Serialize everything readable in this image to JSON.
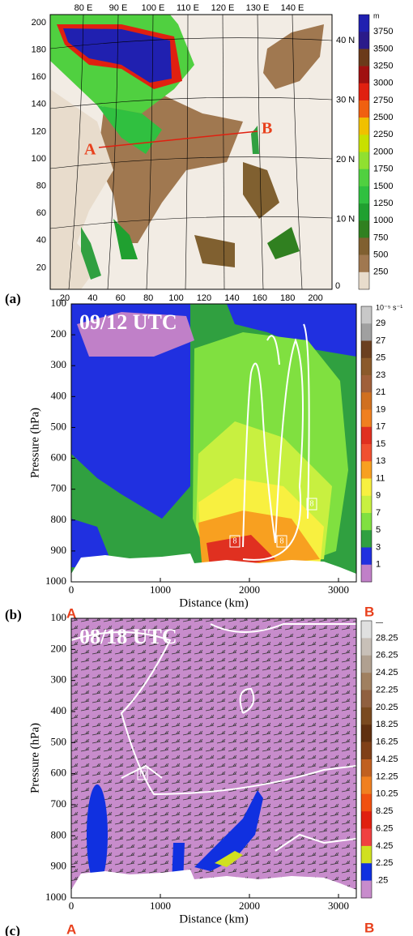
{
  "panel_a": {
    "label": "(a)",
    "top_labels": [
      "80 E",
      "90 E",
      "100 E",
      "110 E",
      "120 E",
      "130 E",
      "140 E"
    ],
    "right_labels": [
      "40 N",
      "30 N",
      "20 N",
      "10 N"
    ],
    "left_ticks": [
      200,
      180,
      160,
      140,
      120,
      100,
      80,
      60,
      40,
      20
    ],
    "bottom_ticks": [
      20,
      40,
      60,
      80,
      100,
      120,
      140,
      160,
      180,
      200
    ],
    "point_labels": [
      "A",
      "B"
    ],
    "colorbar": {
      "unit": "m",
      "labels": [
        3750,
        3500,
        3250,
        3000,
        2750,
        2500,
        2250,
        2000,
        1750,
        1500,
        1250,
        1000,
        750,
        500,
        250
      ],
      "colors": [
        "#2020b0",
        "#2a1a8a",
        "#6b3a1a",
        "#a01010",
        "#e02010",
        "#f06010",
        "#f0c000",
        "#c8e000",
        "#90e030",
        "#50d040",
        "#30c040",
        "#20a030",
        "#308020",
        "#806030",
        "#a07850",
        "#e8dccc"
      ]
    },
    "zero_label": "0"
  },
  "panel_b": {
    "label": "(b)",
    "time": "09/12 UTC",
    "ylabel": "Pressure (hPa)",
    "xlabel": "Distance (km)",
    "yticks": [
      100,
      200,
      300,
      400,
      500,
      600,
      700,
      800,
      900,
      1000
    ],
    "xticks": [
      0,
      1000,
      2000,
      3000
    ],
    "end_labels": [
      "A",
      "B"
    ],
    "contour_labels": [
      "8",
      "8",
      "8"
    ],
    "colorbar": {
      "unit": "10⁻⁵ s⁻¹",
      "labels": [
        "29",
        "27",
        "25",
        "23",
        "21",
        "19",
        "17",
        "15",
        "13",
        "11",
        "9",
        "7",
        "5",
        "3",
        "1"
      ],
      "colors": [
        "#c8c8c8",
        "#a0a0a0",
        "#6b4020",
        "#8b5a2b",
        "#a0603a",
        "#d07020",
        "#f08020",
        "#e03020",
        "#f05030",
        "#f8a020",
        "#f8f040",
        "#c8f040",
        "#80e040",
        "#30a040",
        "#2030e0",
        "#c080c8"
      ]
    }
  },
  "panel_c": {
    "label": "(c)",
    "time": "08/18 UTC",
    "ylabel": "Pressure (hPa)",
    "xlabel": "Distance (km)",
    "yticks": [
      100,
      200,
      300,
      400,
      500,
      600,
      700,
      800,
      900,
      1000
    ],
    "xticks": [
      0,
      1000,
      2000,
      3000
    ],
    "end_labels": [
      "A",
      "B"
    ],
    "contour_labels": [
      "10"
    ],
    "colorbar": {
      "unit": "—",
      "labels": [
        "28.25",
        "26.25",
        "24.25",
        "22.25",
        "20.25",
        "18.25",
        "16.25",
        "14.25",
        "12.25",
        "10.25",
        "8.25",
        "6.25",
        "4.25",
        "2.25",
        ".25"
      ],
      "colors": [
        "#e0e0e0",
        "#c8c0b8",
        "#b0a090",
        "#a08060",
        "#906040",
        "#7a4a20",
        "#603010",
        "#804018",
        "#c06020",
        "#f08020",
        "#f05010",
        "#e02010",
        "#f04040",
        "#d0e020",
        "#1030e0",
        "#c88ccc"
      ]
    }
  }
}
